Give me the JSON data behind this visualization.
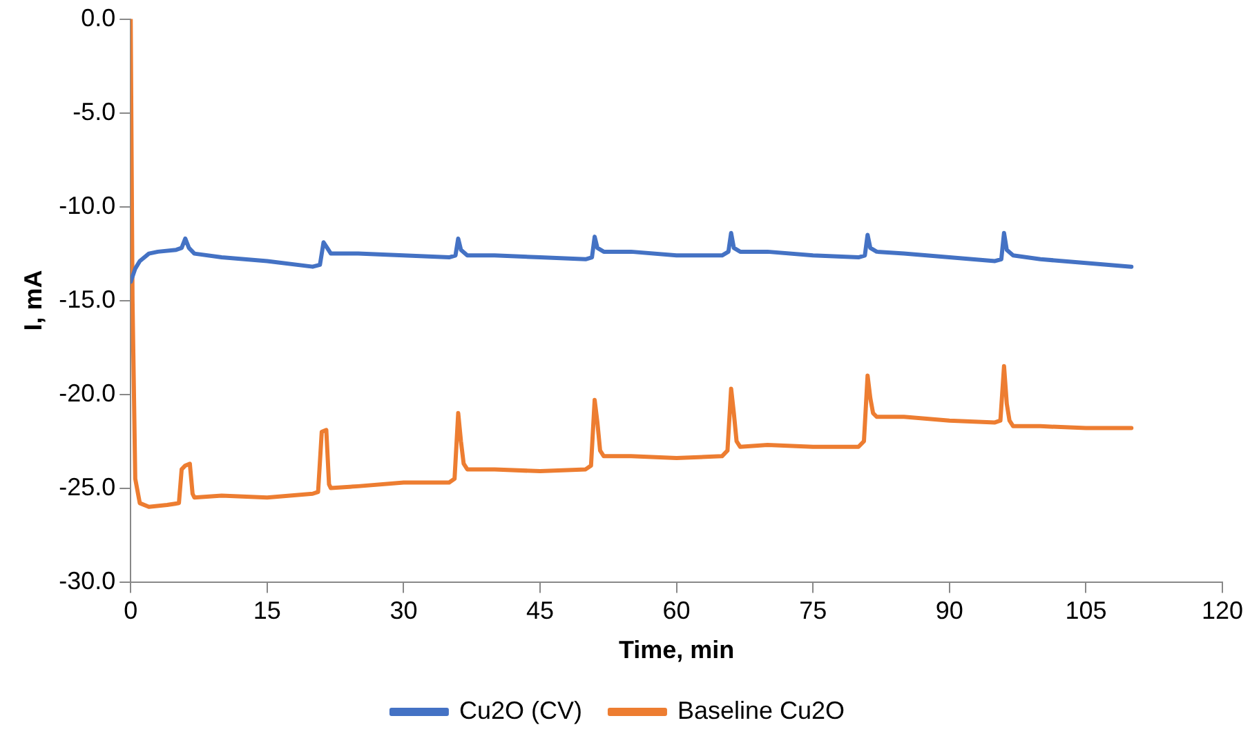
{
  "chart_data": {
    "type": "line",
    "xlabel": "Time, min",
    "ylabel": "I, mA",
    "xlim": [
      0,
      120
    ],
    "xticks": [
      0,
      15,
      30,
      45,
      60,
      75,
      90,
      105,
      120
    ],
    "ylim": [
      -30,
      0
    ],
    "yticks": [
      {
        "value": -30,
        "label": "-30.0"
      },
      {
        "value": -25,
        "label": "-25.0"
      },
      {
        "value": -20,
        "label": "-20.0"
      },
      {
        "value": -15,
        "label": "-15.0"
      },
      {
        "value": -10,
        "label": "-10.0"
      },
      {
        "value": -5,
        "label": "-5.0"
      },
      {
        "value": 0,
        "label": "0.0"
      }
    ],
    "grid": false,
    "legend": "bottom",
    "marker": "none",
    "line_style": "solid",
    "series": [
      {
        "name": "Cu2O (CV)",
        "color": "#4472c4",
        "x": [
          0,
          0.5,
          1,
          2,
          3,
          5,
          5.6,
          6,
          6.4,
          7,
          10,
          15,
          20,
          20.8,
          21.2,
          21.6,
          22,
          25,
          30,
          35,
          35.7,
          36,
          36.3,
          37,
          40,
          45,
          50,
          50.7,
          51,
          51.3,
          52,
          55,
          60,
          65,
          65.7,
          66,
          66.3,
          67,
          70,
          75,
          80,
          80.7,
          81,
          81.3,
          82,
          85,
          90,
          95,
          95.7,
          96,
          96.3,
          97,
          100,
          105,
          110
        ],
        "values": [
          -14,
          -13.3,
          -12.9,
          -12.5,
          -12.4,
          -12.3,
          -12.2,
          -11.7,
          -12.2,
          -12.5,
          -12.7,
          -12.9,
          -13.2,
          -13.1,
          -11.9,
          -12.2,
          -12.5,
          -12.5,
          -12.6,
          -12.7,
          -12.6,
          -11.7,
          -12.3,
          -12.6,
          -12.6,
          -12.7,
          -12.8,
          -12.7,
          -11.6,
          -12.2,
          -12.4,
          -12.4,
          -12.6,
          -12.6,
          -12.4,
          -11.4,
          -12.2,
          -12.4,
          -12.4,
          -12.6,
          -12.7,
          -12.6,
          -11.5,
          -12.2,
          -12.4,
          -12.5,
          -12.7,
          -12.9,
          -12.8,
          -11.4,
          -12.3,
          -12.6,
          -12.8,
          -13,
          -13.2
        ]
      },
      {
        "name": "Baseline Cu2O",
        "color": "#ed7d31",
        "x": [
          0,
          0.2,
          0.5,
          1,
          2,
          4,
          5.3,
          5.6,
          6,
          6.5,
          6.8,
          7,
          10,
          15,
          20,
          20.6,
          21,
          21.5,
          21.8,
          22,
          25,
          30,
          35,
          35.6,
          36,
          36.3,
          36.6,
          37,
          40,
          45,
          50,
          50.6,
          51,
          51.3,
          51.6,
          52,
          55,
          60,
          65,
          65.6,
          66,
          66.3,
          66.6,
          67,
          70,
          75,
          80,
          80.6,
          81,
          81.3,
          81.6,
          82,
          85,
          90,
          95,
          95.6,
          96,
          96.3,
          96.6,
          97,
          100,
          105,
          110
        ],
        "values": [
          0,
          -15,
          -24.5,
          -25.8,
          -26,
          -25.9,
          -25.8,
          -24,
          -23.8,
          -23.7,
          -25.3,
          -25.5,
          -25.4,
          -25.5,
          -25.3,
          -25.2,
          -22,
          -21.9,
          -24.8,
          -25,
          -24.9,
          -24.7,
          -24.7,
          -24.5,
          -21,
          -22.5,
          -23.7,
          -24,
          -24,
          -24.1,
          -24,
          -23.8,
          -20.3,
          -21.5,
          -23,
          -23.3,
          -23.3,
          -23.4,
          -23.3,
          -23,
          -19.7,
          -21,
          -22.5,
          -22.8,
          -22.7,
          -22.8,
          -22.8,
          -22.5,
          -19,
          -20.2,
          -21,
          -21.2,
          -21.2,
          -21.4,
          -21.5,
          -21.4,
          -18.5,
          -20.5,
          -21.4,
          -21.7,
          -21.7,
          -21.8,
          -21.8
        ]
      }
    ]
  }
}
